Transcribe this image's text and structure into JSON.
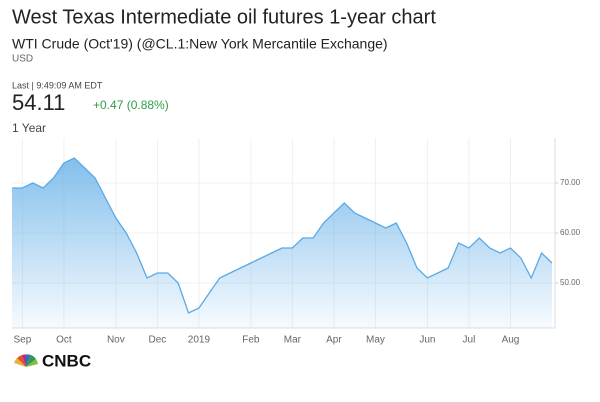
{
  "chart_data": {
    "type": "area",
    "title": "West Texas Intermediate oil futures 1-year chart",
    "subtitle": "WTI Crude (Oct'19) (@CL.1:New York Mercantile Exchange)",
    "currency": "USD",
    "quote_time": "Last | 9:49:09 AM EDT",
    "last_price": "54.11",
    "change": "+0.47 (0.88%)",
    "range_label": "1 Year",
    "logo": "CNBC",
    "categories": [
      null,
      "Sep",
      null,
      null,
      null,
      "Oct",
      null,
      null,
      null,
      null,
      "Nov",
      null,
      null,
      null,
      "Dec",
      null,
      null,
      null,
      "2019",
      null,
      null,
      null,
      null,
      "Feb",
      null,
      null,
      null,
      "Mar",
      null,
      null,
      null,
      "Apr",
      null,
      null,
      null,
      "May",
      null,
      null,
      null,
      null,
      "Jun",
      null,
      null,
      null,
      "Jul",
      null,
      null,
      null,
      "Aug",
      null,
      null,
      null,
      null
    ],
    "values": [
      69,
      69,
      70,
      69,
      71,
      74,
      75,
      73,
      71,
      67,
      63,
      60,
      56,
      51,
      52,
      52,
      50,
      44,
      45,
      48,
      51,
      52,
      53,
      54,
      55,
      56,
      57,
      57,
      59,
      59,
      62,
      64,
      66,
      64,
      63,
      62,
      61,
      62,
      58,
      53,
      51,
      52,
      53,
      58,
      57,
      59,
      57,
      56,
      57,
      55,
      51,
      56,
      54
    ],
    "color": "#5aa9e6",
    "ylim": [
      41,
      78
    ],
    "yticks": [
      {
        "value": 50,
        "label": "50.00"
      },
      {
        "value": 60,
        "label": "60.00"
      },
      {
        "value": 70,
        "label": "70.00"
      }
    ],
    "grid": true
  }
}
